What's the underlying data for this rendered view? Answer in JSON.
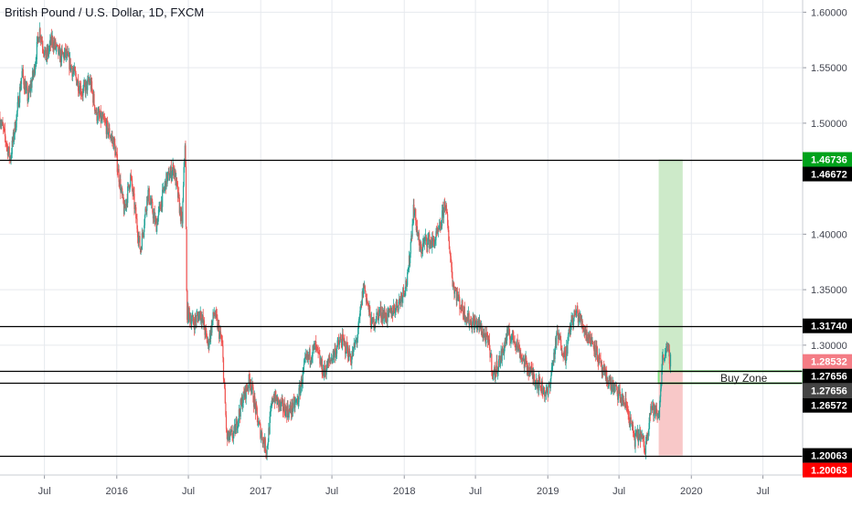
{
  "title": "British Pound / U.S. Dollar, 1D, FXCM",
  "colors": {
    "up": "#26a69a",
    "down": "#ef5350",
    "grid": "#e6e9ee",
    "axis_text": "#434651",
    "hline": "#000000",
    "profit_zone": "#cdeac9",
    "loss_zone": "#f8c8c8",
    "buy_zone": "#7ee37e",
    "label_black": "#000000",
    "label_green": "#00a21b",
    "label_red": "#ff0000",
    "label_pink": "#f47c85",
    "label_gray": "#444444"
  },
  "chart_data": {
    "type": "candlestick",
    "instrument": "British Pound / U.S. Dollar",
    "interval": "1D",
    "source": "FXCM",
    "ylim": [
      1.183,
      1.611
    ],
    "xlim": [
      "2015-03-10",
      "2020-10-10"
    ],
    "grid": true,
    "y_ticks": [
      "1.60000",
      "1.55000",
      "1.50000",
      "1.40000",
      "1.35000",
      "1.30000"
    ],
    "x_ticks": [
      {
        "date": "2015-07-01",
        "label": "Jul"
      },
      {
        "date": "2016-01-01",
        "label": "2016"
      },
      {
        "date": "2016-07-01",
        "label": "Jul"
      },
      {
        "date": "2017-01-01",
        "label": "2017"
      },
      {
        "date": "2017-07-01",
        "label": "Jul"
      },
      {
        "date": "2018-01-01",
        "label": "2018"
      },
      {
        "date": "2018-07-01",
        "label": "Jul"
      },
      {
        "date": "2019-01-01",
        "label": "2019"
      },
      {
        "date": "2019-07-01",
        "label": "Jul"
      },
      {
        "date": "2020-01-01",
        "label": "2020"
      },
      {
        "date": "2020-07-01",
        "label": "Jul"
      }
    ],
    "price_path": [
      [
        "2015-03-10",
        1.505
      ],
      [
        "2015-04-05",
        1.468
      ],
      [
        "2015-04-20",
        1.503
      ],
      [
        "2015-05-05",
        1.545
      ],
      [
        "2015-05-20",
        1.522
      ],
      [
        "2015-06-05",
        1.548
      ],
      [
        "2015-06-18",
        1.585
      ],
      [
        "2015-07-05",
        1.558
      ],
      [
        "2015-07-20",
        1.575
      ],
      [
        "2015-08-10",
        1.56
      ],
      [
        "2015-08-25",
        1.562
      ],
      [
        "2015-09-10",
        1.548
      ],
      [
        "2015-10-05",
        1.528
      ],
      [
        "2015-10-25",
        1.538
      ],
      [
        "2015-11-10",
        1.508
      ],
      [
        "2015-12-01",
        1.5
      ],
      [
        "2015-12-25",
        1.482
      ],
      [
        "2016-01-20",
        1.42
      ],
      [
        "2016-02-05",
        1.452
      ],
      [
        "2016-03-01",
        1.385
      ],
      [
        "2016-03-20",
        1.438
      ],
      [
        "2016-04-10",
        1.408
      ],
      [
        "2016-05-05",
        1.448
      ],
      [
        "2016-05-25",
        1.46
      ],
      [
        "2016-06-15",
        1.408
      ],
      [
        "2016-06-23",
        1.49
      ],
      [
        "2016-06-27",
        1.33
      ],
      [
        "2016-07-15",
        1.32
      ],
      [
        "2016-08-01",
        1.33
      ],
      [
        "2016-08-20",
        1.3
      ],
      [
        "2016-09-05",
        1.33
      ],
      [
        "2016-09-25",
        1.3
      ],
      [
        "2016-10-07",
        1.215
      ],
      [
        "2016-10-25",
        1.22
      ],
      [
        "2016-11-15",
        1.25
      ],
      [
        "2016-12-05",
        1.27
      ],
      [
        "2016-12-25",
        1.23
      ],
      [
        "2017-01-16",
        1.205
      ],
      [
        "2017-02-01",
        1.255
      ],
      [
        "2017-02-20",
        1.245
      ],
      [
        "2017-03-15",
        1.24
      ],
      [
        "2017-04-05",
        1.25
      ],
      [
        "2017-04-25",
        1.285
      ],
      [
        "2017-05-20",
        1.298
      ],
      [
        "2017-06-10",
        1.275
      ],
      [
        "2017-07-05",
        1.292
      ],
      [
        "2017-07-25",
        1.305
      ],
      [
        "2017-08-20",
        1.288
      ],
      [
        "2017-09-05",
        1.31
      ],
      [
        "2017-09-20",
        1.355
      ],
      [
        "2017-10-10",
        1.318
      ],
      [
        "2017-10-30",
        1.33
      ],
      [
        "2017-11-20",
        1.325
      ],
      [
        "2017-12-20",
        1.34
      ],
      [
        "2018-01-10",
        1.36
      ],
      [
        "2018-01-25",
        1.425
      ],
      [
        "2018-02-10",
        1.385
      ],
      [
        "2018-02-25",
        1.395
      ],
      [
        "2018-03-15",
        1.392
      ],
      [
        "2018-04-01",
        1.403
      ],
      [
        "2018-04-15",
        1.43
      ],
      [
        "2018-05-05",
        1.355
      ],
      [
        "2018-05-25",
        1.335
      ],
      [
        "2018-06-15",
        1.322
      ],
      [
        "2018-07-10",
        1.318
      ],
      [
        "2018-08-05",
        1.3
      ],
      [
        "2018-08-15",
        1.272
      ],
      [
        "2018-09-05",
        1.29
      ],
      [
        "2018-09-20",
        1.31
      ],
      [
        "2018-10-10",
        1.305
      ],
      [
        "2018-11-01",
        1.285
      ],
      [
        "2018-11-20",
        1.275
      ],
      [
        "2018-12-10",
        1.265
      ],
      [
        "2019-01-01",
        1.255
      ],
      [
        "2019-01-25",
        1.31
      ],
      [
        "2019-02-15",
        1.29
      ],
      [
        "2019-03-01",
        1.32
      ],
      [
        "2019-03-15",
        1.33
      ],
      [
        "2019-04-10",
        1.31
      ],
      [
        "2019-04-30",
        1.3
      ],
      [
        "2019-05-20",
        1.275
      ],
      [
        "2019-06-10",
        1.265
      ],
      [
        "2019-07-01",
        1.255
      ],
      [
        "2019-07-20",
        1.245
      ],
      [
        "2019-08-10",
        1.215
      ],
      [
        "2019-08-25",
        1.22
      ],
      [
        "2019-09-05",
        1.205
      ],
      [
        "2019-09-20",
        1.245
      ],
      [
        "2019-10-10",
        1.235
      ],
      [
        "2019-10-20",
        1.29
      ],
      [
        "2019-10-30",
        1.296
      ],
      [
        "2019-11-10",
        1.2853
      ]
    ],
    "horizontal_levels": [
      {
        "value": 1.46736,
        "label": "1.46736",
        "label_color": "green",
        "line": false
      },
      {
        "value": 1.46672,
        "label": "1.46672",
        "label_color": "black",
        "line": true
      },
      {
        "value": 1.3174,
        "label": "1.31740",
        "label_color": "black",
        "line": true
      },
      {
        "value": 1.28532,
        "label": "1.28532",
        "label_color": "pink",
        "line": false
      },
      {
        "value": 1.27656,
        "label": "1.27656",
        "label_color": "black",
        "line": true
      },
      {
        "value": 1.27656,
        "label": "1.27656",
        "label_color": "gray",
        "line": false
      },
      {
        "value": 1.26572,
        "label": "1.26572",
        "label_color": "black",
        "line": true
      },
      {
        "value": 1.20063,
        "label": "1.20063",
        "label_color": "black",
        "line": true
      },
      {
        "value": 1.20063,
        "label": "1.20063",
        "label_color": "red",
        "line": false
      }
    ],
    "position": {
      "start": "2019-10-10",
      "end": "2019-12-10",
      "entry": 1.27656,
      "target": 1.46736,
      "stop": 1.20063
    },
    "buy_zone": {
      "start": "2019-10-10",
      "end": "2020-10-10",
      "high": 1.27656,
      "low": 1.26572,
      "label": "Buy Zone",
      "label_at": "2020-03-10"
    }
  }
}
